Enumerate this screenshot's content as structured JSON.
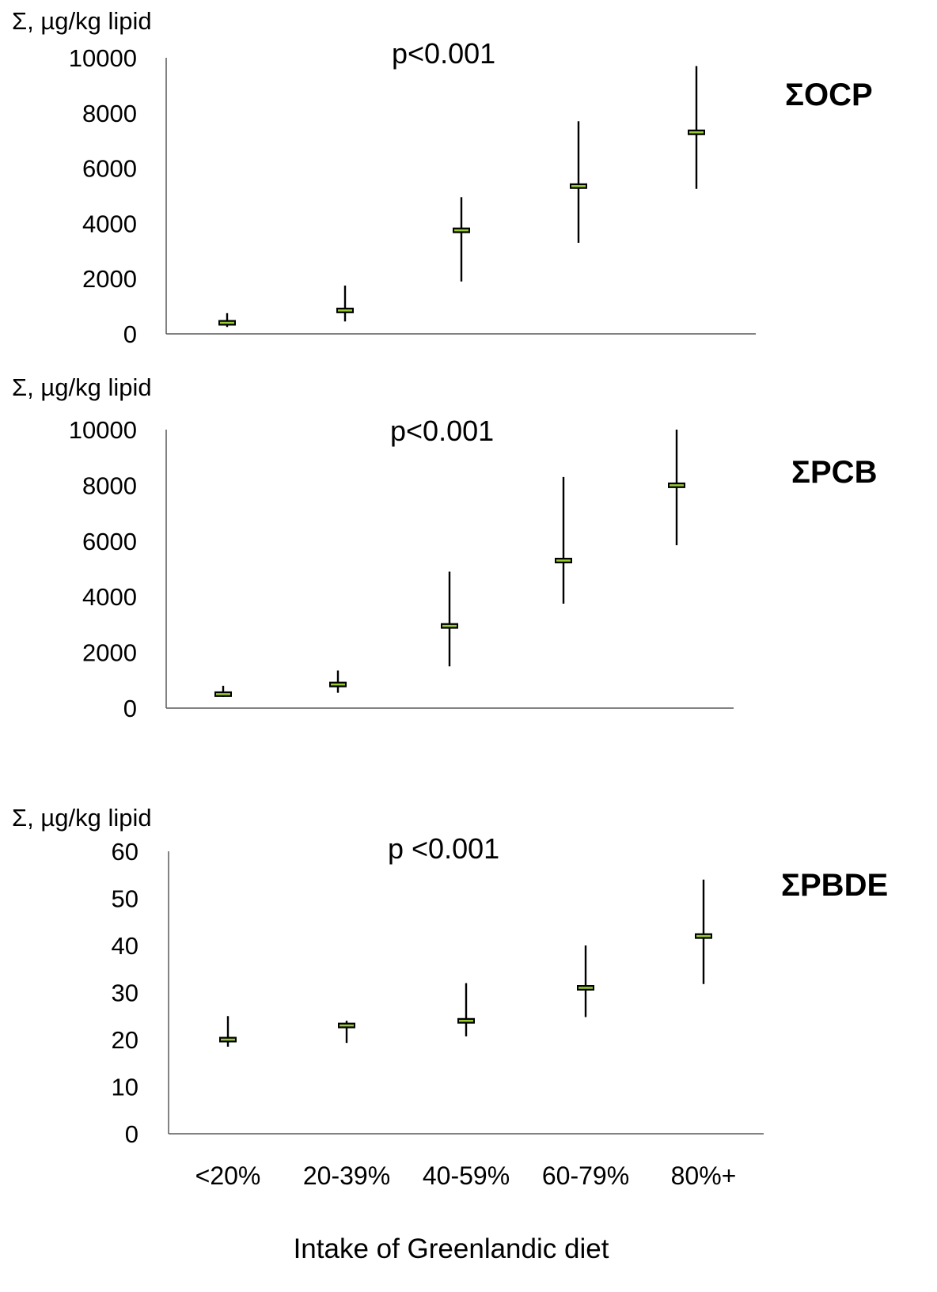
{
  "chart_data": [
    {
      "type": "range",
      "title": "ΣOCP",
      "ylabel": "Σ, µg/kg lipid",
      "annotation": "p<0.001",
      "categories": [
        "<20%",
        "20-39%",
        "40-59%",
        "60-79%",
        "80%+"
      ],
      "ylim": [
        0,
        10000
      ],
      "yticks": [
        "0",
        "2000",
        "4000",
        "6000",
        "8000",
        "10000"
      ],
      "series": [
        {
          "median": [
            400,
            850,
            3750,
            5350,
            7300
          ],
          "low": [
            250,
            450,
            1900,
            3300,
            5250
          ],
          "high": [
            750,
            1750,
            4950,
            7700,
            9700
          ]
        }
      ]
    },
    {
      "type": "range",
      "title": "ΣPCB",
      "ylabel": "Σ, µg/kg lipid",
      "annotation": "p<0.001",
      "categories": [
        "<20%",
        "20-39%",
        "40-59%",
        "60-79%",
        "80%+"
      ],
      "ylim": [
        0,
        10000
      ],
      "yticks": [
        "0",
        "2000",
        "4000",
        "6000",
        "8000",
        "10000"
      ],
      "series": [
        {
          "median": [
            500,
            850,
            2950,
            5300,
            8000
          ],
          "low": [
            400,
            550,
            1500,
            3750,
            5850
          ],
          "high": [
            800,
            1350,
            4900,
            8300,
            10000
          ]
        }
      ]
    },
    {
      "type": "range",
      "title": "ΣPBDE",
      "ylabel": "Σ, µg/kg lipid",
      "annotation": "p <0.001",
      "categories": [
        "<20%",
        "20-39%",
        "40-59%",
        "60-79%",
        "80%+"
      ],
      "ylim": [
        0,
        60
      ],
      "yticks": [
        "0",
        "10",
        "20",
        "30",
        "40",
        "50",
        "60"
      ],
      "xlabel": "Intake of Greenlandic diet",
      "series": [
        {
          "median": [
            20,
            23,
            24,
            31,
            42
          ],
          "low": [
            18.5,
            19.3,
            20.7,
            24.8,
            31.8
          ],
          "high": [
            25,
            24,
            32,
            40,
            54
          ]
        }
      ]
    }
  ]
}
